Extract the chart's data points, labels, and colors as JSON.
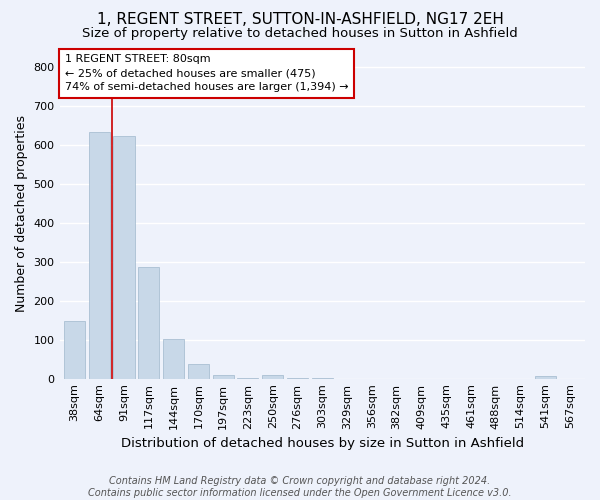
{
  "title": "1, REGENT STREET, SUTTON-IN-ASHFIELD, NG17 2EH",
  "subtitle": "Size of property relative to detached houses in Sutton in Ashfield",
  "xlabel": "Distribution of detached houses by size in Sutton in Ashfield",
  "ylabel": "Number of detached properties",
  "categories": [
    "38sqm",
    "64sqm",
    "91sqm",
    "117sqm",
    "144sqm",
    "170sqm",
    "197sqm",
    "223sqm",
    "250sqm",
    "276sqm",
    "303sqm",
    "329sqm",
    "356sqm",
    "382sqm",
    "409sqm",
    "435sqm",
    "461sqm",
    "488sqm",
    "514sqm",
    "541sqm",
    "567sqm"
  ],
  "values": [
    148,
    632,
    624,
    287,
    101,
    38,
    9,
    3,
    10,
    2,
    1,
    0,
    0,
    0,
    0,
    0,
    0,
    0,
    0,
    8,
    0
  ],
  "bar_color": "#c8d8e8",
  "bar_edge_color": "#a0b8cc",
  "vline_x_index": 1.5,
  "vline_color": "#cc0000",
  "annotation_line1": "1 REGENT STREET: 80sqm",
  "annotation_line2": "← 25% of detached houses are smaller (475)",
  "annotation_line3": "74% of semi-detached houses are larger (1,394) →",
  "annotation_box_color": "#ffffff",
  "annotation_box_edge": "#cc0000",
  "ylim": [
    0,
    850
  ],
  "yticks": [
    0,
    100,
    200,
    300,
    400,
    500,
    600,
    700,
    800
  ],
  "background_color": "#eef2fb",
  "grid_color": "#ffffff",
  "title_fontsize": 11,
  "subtitle_fontsize": 9.5,
  "xlabel_fontsize": 9.5,
  "ylabel_fontsize": 9,
  "tick_fontsize": 8,
  "footer": "Contains HM Land Registry data © Crown copyright and database right 2024.\nContains public sector information licensed under the Open Government Licence v3.0."
}
